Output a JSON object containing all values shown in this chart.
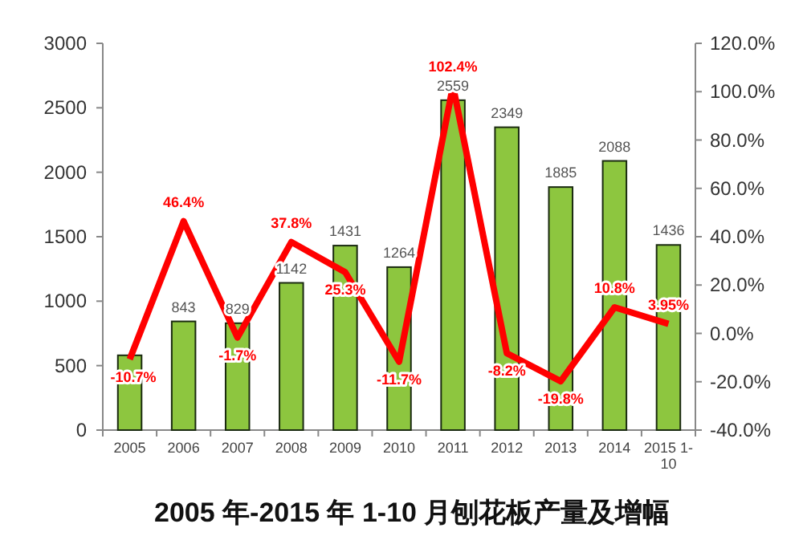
{
  "chart_data": {
    "type": "bar",
    "title": "2005 年-2015 年 1-10 月刨花板产量及增幅",
    "categories": [
      "2005",
      "2006",
      "2007",
      "2008",
      "2009",
      "2010",
      "2011",
      "2012",
      "2013",
      "2014",
      "2015 1-10"
    ],
    "series": [
      {
        "color": "#8dc63f",
        "values": [
          580,
          843,
          829,
          1142,
          1431,
          1264,
          2559,
          2349,
          1885,
          2088,
          1436
        ],
        "value_labels": [
          null,
          "843",
          "829",
          "1142",
          "1431",
          "1264",
          "2559",
          "2349",
          "1885",
          "2088",
          "1436"
        ]
      },
      {
        "type": "line",
        "axis": "y2",
        "color": "#ff0000",
        "values": [
          -10.7,
          46.4,
          -1.7,
          37.8,
          25.3,
          -11.7,
          102.4,
          -8.2,
          -19.8,
          10.8,
          3.95
        ],
        "value_labels": [
          "-10.7%",
          "46.4%",
          "-1.7%",
          "37.8%",
          "25.3%",
          "-11.7%",
          "102.4%",
          "-8.2%",
          "-19.8%",
          "10.8%",
          "3.95%"
        ]
      }
    ],
    "ylim": [
      0,
      3000
    ],
    "yticks": [
      0,
      500,
      1000,
      1500,
      2000,
      2500,
      3000
    ],
    "y2lim": [
      -40,
      120
    ],
    "y2ticks": [
      {
        "value": -40,
        "label": "-40.0%"
      },
      {
        "value": -20,
        "label": "-20.0%"
      },
      {
        "value": 0,
        "label": "0.0%"
      },
      {
        "value": 20,
        "label": "20.0%"
      },
      {
        "value": 40,
        "label": "40.0%"
      },
      {
        "value": 60,
        "label": "60.0%"
      },
      {
        "value": 80,
        "label": "80.0%"
      },
      {
        "value": 100,
        "label": "100.0%"
      },
      {
        "value": 120,
        "label": "120.0%"
      }
    ],
    "marker": "none",
    "grid": false
  }
}
